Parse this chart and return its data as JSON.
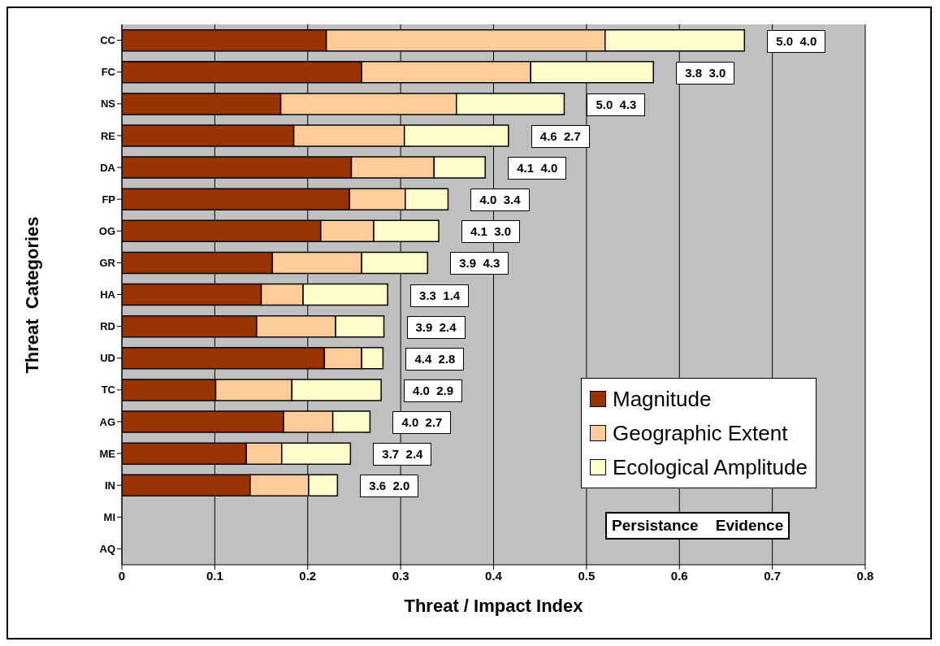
{
  "chart_data": {
    "type": "bar",
    "stacked": true,
    "orientation": "horizontal",
    "xlabel": "Threat / Impact Index",
    "ylabel": "Threat  Categories",
    "categories": [
      "CC",
      "FC",
      "NS",
      "RE",
      "DA",
      "FP",
      "OG",
      "GR",
      "HA",
      "RD",
      "UD",
      "TC",
      "AG",
      "ME",
      "IN",
      "MI",
      "AQ"
    ],
    "series": [
      {
        "name": "Magnitude",
        "color": "#993300",
        "values": [
          0.22,
          0.258,
          0.171,
          0.185,
          0.247,
          0.245,
          0.214,
          0.162,
          0.15,
          0.145,
          0.218,
          0.101,
          0.174,
          0.134,
          0.138,
          null,
          null
        ]
      },
      {
        "name": "Geographic Extent",
        "color": "#ffcc99",
        "values": [
          0.3,
          0.182,
          0.189,
          0.119,
          0.089,
          0.06,
          0.057,
          0.096,
          0.045,
          0.085,
          0.04,
          0.082,
          0.053,
          0.038,
          0.063,
          null,
          null
        ]
      },
      {
        "name": "Ecological Amplitude",
        "color": "#ffffcc",
        "values": [
          0.15,
          0.132,
          0.116,
          0.112,
          0.055,
          0.046,
          0.07,
          0.071,
          0.091,
          0.052,
          0.023,
          0.096,
          0.04,
          0.074,
          0.031,
          null,
          null
        ]
      }
    ],
    "xlim": [
      0,
      0.8
    ],
    "xticks": [
      0,
      0.1,
      0.2,
      0.3,
      0.4,
      0.5,
      0.6,
      0.7,
      0.8
    ],
    "grid": "x",
    "legend": "bottom right",
    "annotations": [
      "5.0  4.0",
      "3.8  3.0",
      "5.0  4.3",
      "4.6  2.7",
      "4.1  4.0",
      "4.0  3.4",
      "4.1  3.0",
      "3.9  4.3",
      "3.3  1.4",
      "3.9  2.4",
      "4.4  2.8",
      "4.0  2.9",
      "4.0  2.7",
      "3.7  2.4",
      "3.6  2.0",
      "Persistance    Evidence"
    ]
  }
}
